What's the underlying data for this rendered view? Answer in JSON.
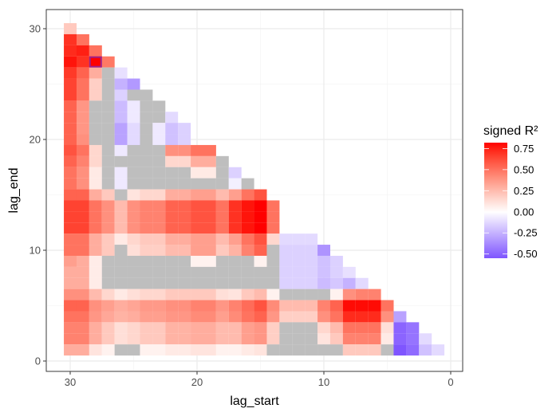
{
  "chart_data": {
    "type": "heatmap",
    "xlabel": "lag_start",
    "ylabel": "lag_end",
    "x_reversed": true,
    "xlim": [
      32,
      0
    ],
    "ylim": [
      0,
      31
    ],
    "x_ticks": [
      30,
      20,
      10,
      0
    ],
    "y_ticks": [
      0,
      10,
      20,
      30
    ],
    "grid": true,
    "legend": {
      "title": "signed R²",
      "placement": "right",
      "breaks": [
        "0.75",
        "0.50",
        "0.25",
        "0.00",
        "-0.25",
        "-0.50"
      ],
      "break_values": [
        0.75,
        0.5,
        0.25,
        0,
        -0.25,
        -0.5
      ],
      "limits": [
        -0.55,
        0.82
      ]
    },
    "colors": {
      "high": "#ff0000",
      "mid": "#ffffff",
      "low": "#7f55ff",
      "na": "#bebebe",
      "highlight": "#a0208a"
    },
    "highlight": {
      "lag_start": 28,
      "lag_end": 27
    },
    "lag_start": [
      30,
      29,
      28,
      27,
      26,
      25,
      24,
      23,
      22,
      21,
      20,
      19,
      18,
      17,
      16,
      15,
      14,
      13,
      12,
      11,
      10,
      9,
      8,
      7,
      6,
      5,
      4,
      3,
      2,
      1
    ],
    "rows": [
      {
        "lag_end": 30,
        "values": [
          0.2
        ]
      },
      {
        "lag_end": 29,
        "values": [
          0.7,
          0.5
        ]
      },
      {
        "lag_end": 28,
        "values": [
          0.72,
          0.75,
          0.5
        ]
      },
      {
        "lag_end": 27,
        "values": [
          0.78,
          0.7,
          0.82,
          0.48
        ]
      },
      {
        "lag_end": 26,
        "values": [
          0.68,
          0.55,
          0.3,
          null,
          -0.1
        ]
      },
      {
        "lag_end": 25,
        "values": [
          0.65,
          0.5,
          0.18,
          null,
          -0.25,
          -0.33
        ]
      },
      {
        "lag_end": 24,
        "values": [
          0.65,
          0.5,
          0.18,
          null,
          -0.15,
          null,
          null
        ]
      },
      {
        "lag_end": 23,
        "values": [
          0.55,
          0.38,
          null,
          null,
          -0.22,
          -0.07,
          null,
          null
        ]
      },
      {
        "lag_end": 22,
        "values": [
          0.55,
          0.38,
          null,
          null,
          -0.22,
          -0.07,
          null,
          null,
          -0.12
        ]
      },
      {
        "lag_end": 21,
        "values": [
          0.55,
          0.38,
          null,
          null,
          -0.3,
          -0.12,
          null,
          -0.07,
          -0.2,
          -0.15
        ]
      },
      {
        "lag_end": 20,
        "values": [
          0.55,
          0.4,
          null,
          null,
          -0.3,
          -0.12,
          null,
          -0.07,
          -0.2,
          -0.15
        ]
      },
      {
        "lag_end": 19,
        "values": [
          0.6,
          0.5,
          0.15,
          null,
          -0.07,
          null,
          null,
          null,
          0.4,
          0.4,
          0.5,
          0.5
        ]
      },
      {
        "lag_end": 18,
        "values": [
          0.55,
          0.45,
          0.15,
          null,
          null,
          null,
          null,
          null,
          0.15,
          0.15,
          0.3,
          0.3,
          null
        ]
      },
      {
        "lag_end": 17,
        "values": [
          0.5,
          0.4,
          0.08,
          null,
          -0.07,
          null,
          null,
          null,
          null,
          null,
          0.08,
          0.08,
          null,
          -0.15
        ]
      },
      {
        "lag_end": 16,
        "values": [
          0.5,
          0.4,
          0.08,
          null,
          -0.07,
          null,
          null,
          null,
          null,
          null,
          null,
          null,
          null,
          -0.05,
          null
        ]
      },
      {
        "lag_end": 15,
        "values": [
          0.55,
          0.55,
          0.3,
          0.2,
          null,
          0.1,
          0.15,
          0.15,
          0.3,
          0.3,
          0.35,
          0.35,
          0.25,
          0.35,
          0.5,
          0.6
        ]
      },
      {
        "lag_end": 14,
        "values": [
          0.65,
          0.65,
          0.5,
          0.4,
          0.25,
          0.4,
          0.45,
          0.45,
          0.55,
          0.55,
          0.6,
          0.6,
          0.5,
          0.7,
          0.78,
          0.82,
          0.5
        ]
      },
      {
        "lag_end": 13,
        "values": [
          0.65,
          0.65,
          0.5,
          0.4,
          0.25,
          0.4,
          0.45,
          0.45,
          0.55,
          0.55,
          0.6,
          0.6,
          0.5,
          0.7,
          0.78,
          0.82,
          0.5
        ]
      },
      {
        "lag_end": 12,
        "values": [
          0.65,
          0.65,
          0.5,
          0.4,
          0.25,
          0.4,
          0.45,
          0.45,
          0.55,
          0.55,
          0.6,
          0.6,
          0.5,
          0.7,
          0.78,
          0.82,
          0.5
        ]
      },
      {
        "lag_end": 11,
        "values": [
          0.5,
          0.5,
          0.3,
          0.2,
          0.08,
          0.15,
          0.2,
          0.2,
          0.3,
          0.3,
          0.35,
          0.35,
          0.25,
          0.35,
          0.5,
          0.6,
          0.15,
          -0.12,
          -0.12,
          -0.12
        ]
      },
      {
        "lag_end": 10,
        "values": [
          0.5,
          0.5,
          0.3,
          0.2,
          null,
          0.12,
          0.18,
          0.18,
          0.25,
          0.25,
          0.35,
          0.35,
          0.2,
          0.28,
          0.45,
          0.55,
          null,
          -0.15,
          -0.15,
          -0.15,
          -0.35
        ]
      },
      {
        "lag_end": 9,
        "values": [
          0.35,
          0.3,
          0.07,
          null,
          null,
          null,
          null,
          null,
          null,
          null,
          0.05,
          0.05,
          null,
          null,
          null,
          0.05,
          null,
          -0.15,
          -0.15,
          -0.15,
          -0.2,
          -0.15
        ]
      },
      {
        "lag_end": 8,
        "values": [
          0.3,
          0.3,
          0.07,
          null,
          null,
          null,
          null,
          null,
          null,
          null,
          null,
          null,
          null,
          null,
          null,
          null,
          null,
          -0.15,
          -0.15,
          -0.15,
          -0.2,
          -0.15,
          -0.1
        ]
      },
      {
        "lag_end": 7,
        "values": [
          0.3,
          0.3,
          0.07,
          null,
          null,
          null,
          null,
          null,
          null,
          null,
          null,
          null,
          null,
          null,
          null,
          null,
          null,
          -0.15,
          -0.15,
          -0.15,
          -0.22,
          -0.18,
          -0.25,
          -0.12
        ]
      },
      {
        "lag_end": 6,
        "values": [
          0.4,
          0.4,
          0.25,
          0.15,
          0.08,
          0.12,
          0.15,
          0.15,
          0.2,
          0.2,
          0.2,
          0.2,
          0.12,
          0.1,
          0.2,
          0.25,
          0.05,
          null,
          null,
          null,
          null,
          0.05,
          0.4,
          0.45,
          0.45
        ]
      },
      {
        "lag_end": 5,
        "values": [
          0.55,
          0.55,
          0.4,
          0.35,
          0.3,
          0.33,
          0.37,
          0.37,
          0.4,
          0.4,
          0.45,
          0.45,
          0.38,
          0.45,
          0.52,
          0.6,
          0.42,
          0.25,
          0.25,
          0.25,
          0.45,
          0.55,
          0.8,
          0.8,
          0.8,
          0.5
        ]
      },
      {
        "lag_end": 4,
        "values": [
          0.5,
          0.5,
          0.38,
          0.32,
          0.28,
          0.3,
          0.35,
          0.35,
          0.38,
          0.38,
          0.42,
          0.42,
          0.35,
          0.42,
          0.5,
          0.55,
          0.38,
          0.18,
          0.18,
          0.18,
          0.4,
          0.5,
          0.72,
          0.72,
          0.72,
          0.4,
          -0.3
        ]
      },
      {
        "lag_end": 3,
        "values": [
          0.45,
          0.45,
          0.3,
          0.2,
          0.12,
          0.15,
          0.2,
          0.2,
          0.28,
          0.28,
          0.3,
          0.3,
          0.25,
          0.25,
          0.35,
          0.38,
          0.18,
          null,
          null,
          null,
          0.15,
          0.25,
          0.5,
          0.5,
          0.5,
          0.12,
          -0.5,
          -0.45
        ]
      },
      {
        "lag_end": 2,
        "values": [
          0.45,
          0.45,
          0.3,
          0.2,
          0.12,
          0.15,
          0.2,
          0.2,
          0.28,
          0.28,
          0.3,
          0.3,
          0.25,
          0.25,
          0.35,
          0.38,
          0.18,
          null,
          null,
          null,
          0.1,
          0.2,
          0.45,
          0.45,
          0.45,
          0.08,
          -0.5,
          -0.45,
          -0.12
        ]
      },
      {
        "lag_end": 1,
        "values": [
          0.3,
          0.3,
          0.1,
          0.05,
          null,
          null,
          0.05,
          0.05,
          0.08,
          0.08,
          0.1,
          0.1,
          0.05,
          0.05,
          0.08,
          0.1,
          null,
          null,
          null,
          null,
          null,
          null,
          0.2,
          0.2,
          0.2,
          null,
          -0.55,
          -0.48,
          -0.2,
          -0.12
        ]
      }
    ]
  }
}
